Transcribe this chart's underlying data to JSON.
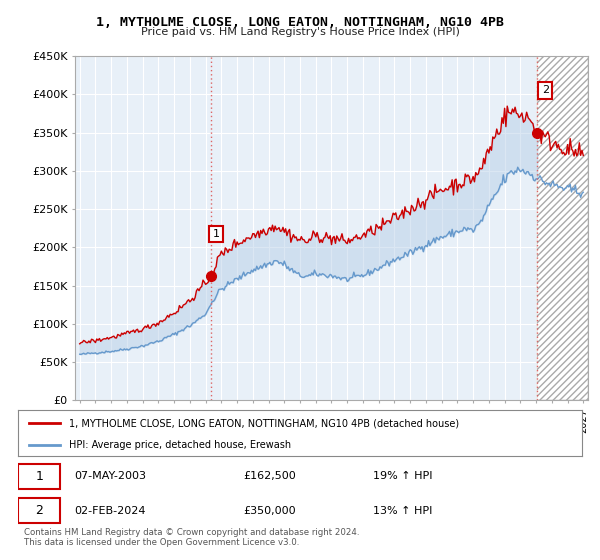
{
  "title": "1, MYTHOLME CLOSE, LONG EATON, NOTTINGHAM, NG10 4PB",
  "subtitle": "Price paid vs. HM Land Registry's House Price Index (HPI)",
  "plot_bg_color": "#e8f0f8",
  "legend_line1": "1, MYTHOLME CLOSE, LONG EATON, NOTTINGHAM, NG10 4PB (detached house)",
  "legend_line2": "HPI: Average price, detached house, Erewash",
  "transaction1_label": "1",
  "transaction1_date": "07-MAY-2003",
  "transaction1_price": "£162,500",
  "transaction1_hpi": "19% ↑ HPI",
  "transaction2_label": "2",
  "transaction2_date": "02-FEB-2024",
  "transaction2_price": "£350,000",
  "transaction2_hpi": "13% ↑ HPI",
  "footer": "Contains HM Land Registry data © Crown copyright and database right 2024.\nThis data is licensed under the Open Government Licence v3.0.",
  "ylim": [
    0,
    450000
  ],
  "yticks": [
    0,
    50000,
    100000,
    150000,
    200000,
    250000,
    300000,
    350000,
    400000,
    450000
  ],
  "red_color": "#cc0000",
  "blue_color": "#6699cc",
  "vline_color": "#dd6666",
  "marker1_x": 2003.35,
  "marker1_y": 162500,
  "marker2_x": 2024.08,
  "marker2_y": 350000,
  "xlim_left": 1994.7,
  "xlim_right": 2027.3,
  "future_start": 2024.08
}
